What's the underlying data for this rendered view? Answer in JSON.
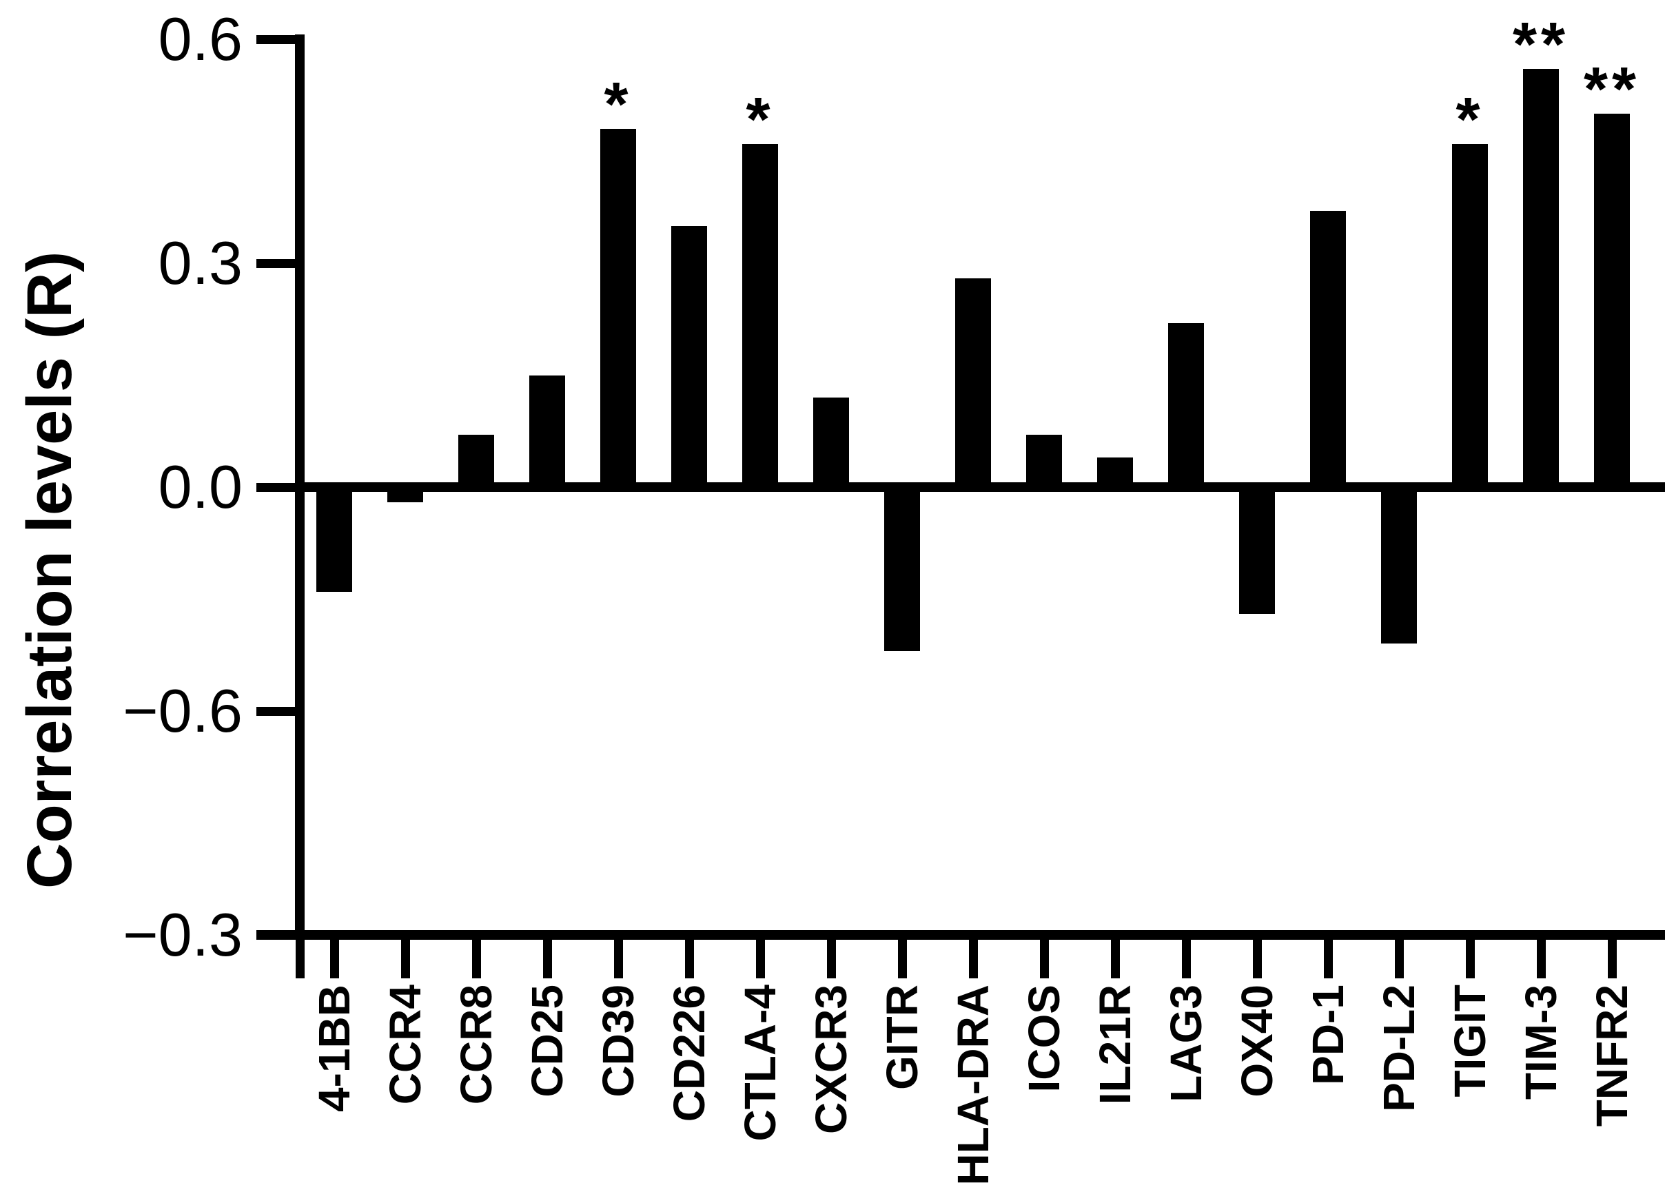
{
  "figure": {
    "background_color": "#ffffff",
    "ink_color": "#000000"
  },
  "chart_data": {
    "type": "bar",
    "title": "",
    "xlabel": "",
    "ylabel": "Correlation levels (R)",
    "categories": [
      "4-1BB",
      "CCR4",
      "CCR8",
      "CD25",
      "CD39",
      "CD226",
      "CTLA-4",
      "CXCR3",
      "GITR",
      "HLA-DRA",
      "ICOS",
      "IL21R",
      "LAG3",
      "OX40",
      "PD-1",
      "PD-L2",
      "TIGIT",
      "TIM-3",
      "TNFR2"
    ],
    "values": [
      -0.14,
      -0.02,
      0.07,
      0.15,
      0.48,
      0.35,
      0.46,
      0.12,
      -0.22,
      0.28,
      0.07,
      0.04,
      0.22,
      -0.17,
      0.37,
      -0.21,
      0.46,
      0.56,
      0.5
    ],
    "significance": {
      "CD39": "*",
      "CTLA-4": "*",
      "TIGIT": "*",
      "TIM-3": "**",
      "TNFR2": "**"
    },
    "bar_color": "#000000",
    "grid": false,
    "legend_position": "none",
    "y_ticks_printed_top_to_bottom": [
      "0.6",
      "0.3",
      "0.0",
      "−0.6",
      "−0.3"
    ],
    "y_tick_spacing_units": 0.3,
    "y_tick_spacing_uniform": true
  }
}
